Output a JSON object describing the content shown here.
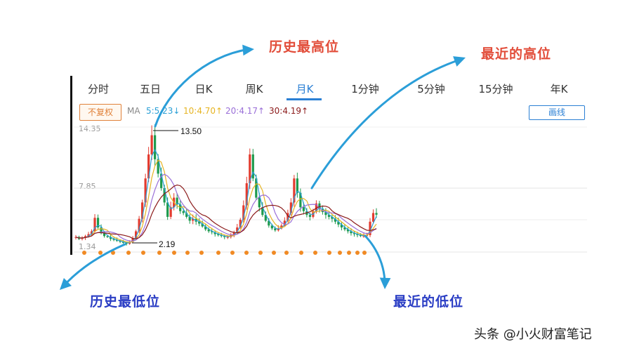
{
  "tabs": [
    "分时",
    "五日",
    "日K",
    "周K",
    "月K",
    "1分钟",
    "5分钟",
    "15分钟",
    "年K"
  ],
  "active_tab": "月K",
  "toolbar": {
    "fuquan_label": "不复权",
    "ma_prefix": "MA",
    "ma5": "5:5.23↓",
    "ma10": "10:4.70↑",
    "ma20": "20:4.17↑",
    "ma30": "30:4.19↑",
    "draw_label": "画线"
  },
  "colors": {
    "accent": "#2a7fd4",
    "ma5": "#2a9fd6",
    "ma10": "#e6b422",
    "ma20": "#9a6fd8",
    "ma30": "#8b1a1a",
    "up": "#e33b2f",
    "down": "#1e9a4d",
    "annot_red": "#e24d3a",
    "annot_blue": "#2a3dc4",
    "arrow": "#2b9ed8",
    "dot": "#f08a24"
  },
  "annotations": {
    "hist_high": "历史最高位",
    "recent_high": "最近的高位",
    "hist_low": "历史最低位",
    "recent_low": "最近的低位"
  },
  "footer": "头条 @小火财富笔记",
  "chart_data": {
    "type": "candlestick",
    "y_ticks": [
      "14.35",
      "7.85",
      "1.34"
    ],
    "ylim": [
      1.34,
      14.35
    ],
    "max_label": "13.50",
    "min_label": "2.19",
    "max_value": 13.5,
    "min_value": 2.19,
    "close_path": [
      2.9,
      2.7,
      2.8,
      3.0,
      3.2,
      3.5,
      4.9,
      3.9,
      3.3,
      3.0,
      2.9,
      2.7,
      2.6,
      2.5,
      2.4,
      2.3,
      2.19,
      2.4,
      2.8,
      3.5,
      4.8,
      6.5,
      9.0,
      11.5,
      13.5,
      11.0,
      9.5,
      8.0,
      6.5,
      5.0,
      6.0,
      7.0,
      6.3,
      5.6,
      5.4,
      5.0,
      4.6,
      4.8,
      4.5,
      4.3,
      4.0,
      3.7,
      3.5,
      3.4,
      3.2,
      3.1,
      3.0,
      2.9,
      2.9,
      3.1,
      3.4,
      3.9,
      4.7,
      6.2,
      8.5,
      11.5,
      9.0,
      7.0,
      6.0,
      5.2,
      4.6,
      4.1,
      3.8,
      3.6,
      3.8,
      4.1,
      4.6,
      5.4,
      6.5,
      9.0,
      7.5,
      6.0,
      5.6,
      5.2,
      5.0,
      5.6,
      6.4,
      5.8,
      5.5,
      5.2,
      5.0,
      4.8,
      4.5,
      4.2,
      3.9,
      3.7,
      3.5,
      3.3,
      3.2,
      3.1,
      3.0,
      3.0,
      3.1,
      4.5,
      5.4,
      5.23
    ]
  }
}
